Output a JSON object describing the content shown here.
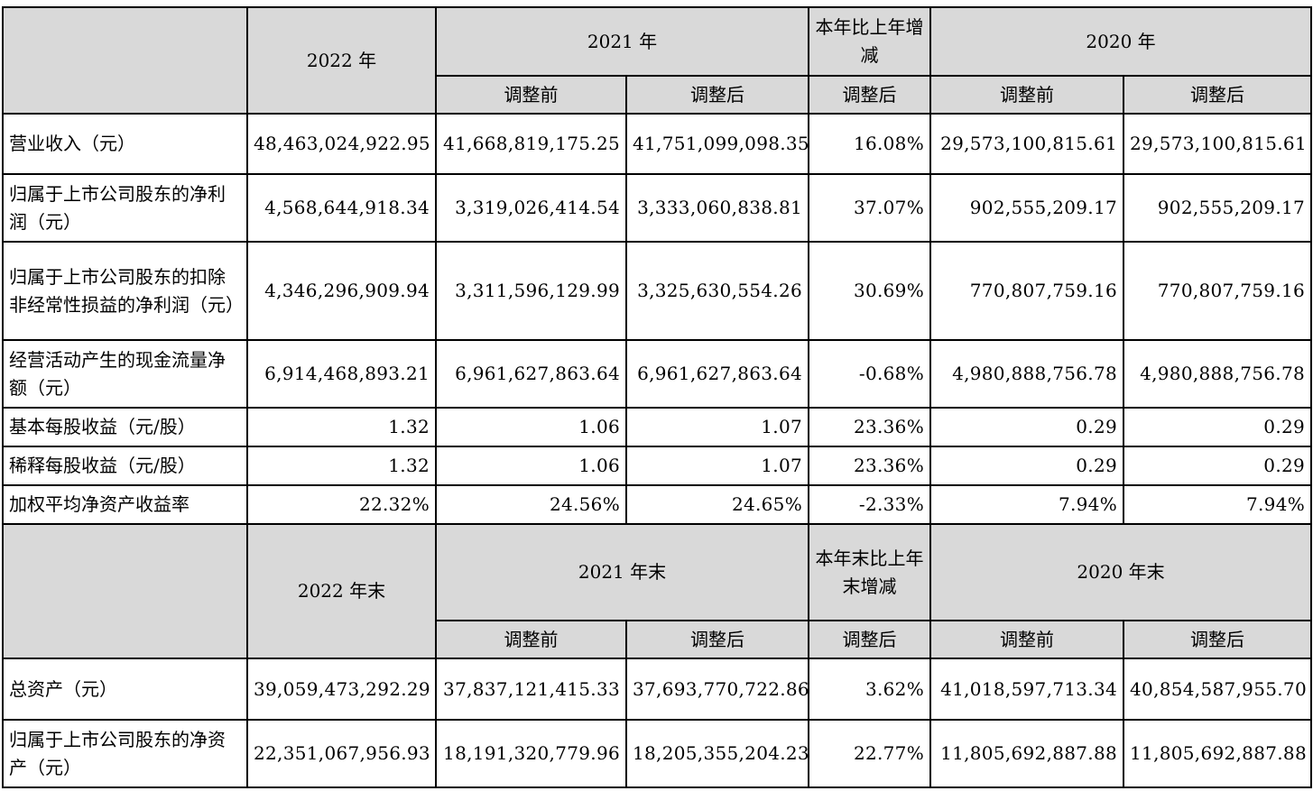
{
  "section1": {
    "year_current": "2022 年",
    "year_prev": "2021 年",
    "change_header": "本年比上年增减",
    "year_prev2": "2020 年",
    "before_adj": "调整前",
    "after_adj": "调整后",
    "rows": [
      {
        "label": "营业收入（元）",
        "cells": [
          "48,463,024,922.95",
          "41,668,819,175.25",
          "41,751,099,098.35",
          "16.08%",
          "29,573,100,815.61",
          "29,573,100,815.61"
        ]
      },
      {
        "label": "归属于上市公司股东的净利润（元）",
        "cells": [
          "4,568,644,918.34",
          "3,319,026,414.54",
          "3,333,060,838.81",
          "37.07%",
          "902,555,209.17",
          "902,555,209.17"
        ]
      },
      {
        "label": "归属于上市公司股东的扣除非经常性损益的净利润（元）",
        "cells": [
          "4,346,296,909.94",
          "3,311,596,129.99",
          "3,325,630,554.26",
          "30.69%",
          "770,807,759.16",
          "770,807,759.16"
        ]
      },
      {
        "label": "经营活动产生的现金流量净额（元）",
        "cells": [
          "6,914,468,893.21",
          "6,961,627,863.64",
          "6,961,627,863.64",
          "-0.68%",
          "4,980,888,756.78",
          "4,980,888,756.78"
        ]
      },
      {
        "label": "基本每股收益（元/股）",
        "cells": [
          "1.32",
          "1.06",
          "1.07",
          "23.36%",
          "0.29",
          "0.29"
        ]
      },
      {
        "label": "稀释每股收益（元/股）",
        "cells": [
          "1.32",
          "1.06",
          "1.07",
          "23.36%",
          "0.29",
          "0.29"
        ]
      },
      {
        "label": "加权平均净资产收益率",
        "cells": [
          "22.32%",
          "24.56%",
          "24.65%",
          "-2.33%",
          "7.94%",
          "7.94%"
        ]
      }
    ]
  },
  "section2": {
    "year_current": "2022 年末",
    "year_prev": "2021 年末",
    "change_header": "本年末比上年末增减",
    "year_prev2": "2020 年末",
    "before_adj": "调整前",
    "after_adj": "调整后",
    "rows": [
      {
        "label": "总资产（元）",
        "cells": [
          "39,059,473,292.29",
          "37,837,121,415.33",
          "37,693,770,722.86",
          "3.62%",
          "41,018,597,713.34",
          "40,854,587,955.70"
        ]
      },
      {
        "label": "归属于上市公司股东的净资产（元）",
        "cells": [
          "22,351,067,956.93",
          "18,191,320,779.96",
          "18,205,355,204.23",
          "22.77%",
          "11,805,692,887.88",
          "11,805,692,887.88"
        ]
      }
    ]
  }
}
